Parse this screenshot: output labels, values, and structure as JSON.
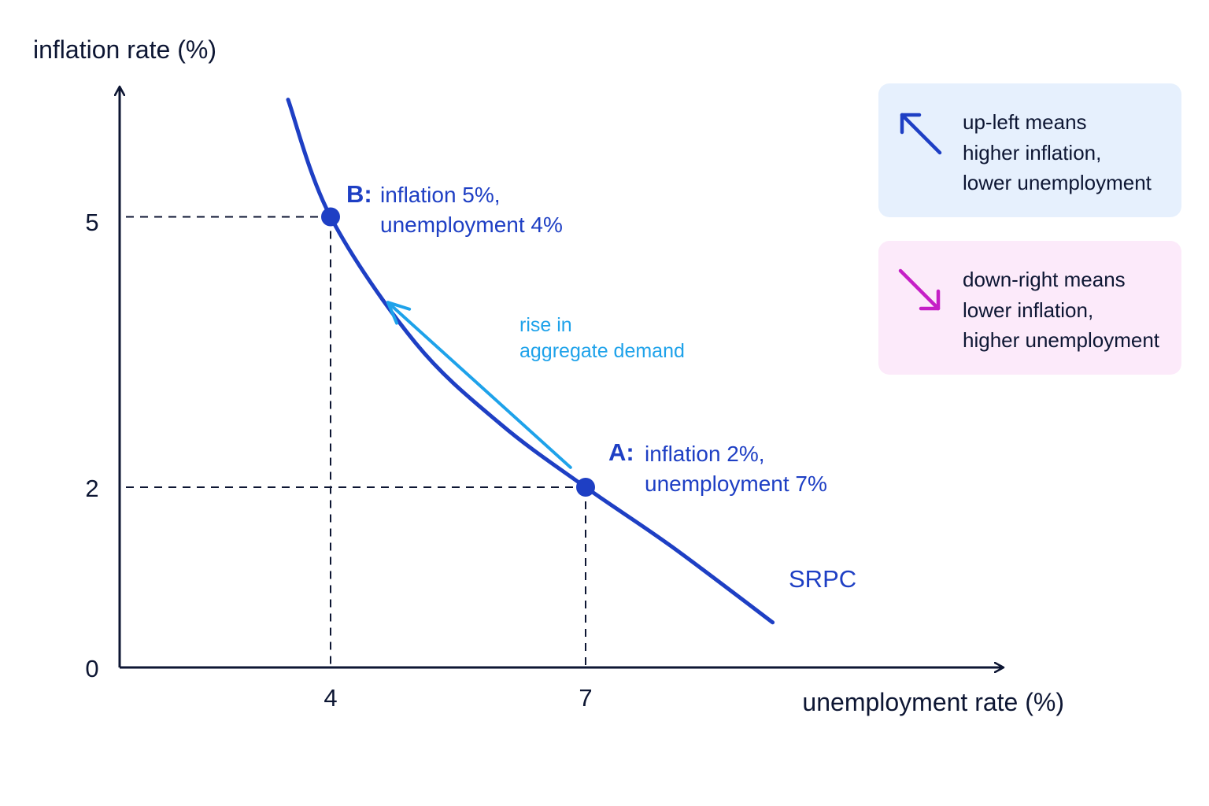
{
  "chart_data": {
    "type": "line",
    "title": "",
    "xlabel": "unemployment rate (%)",
    "ylabel": "inflation rate (%)",
    "x_ticks": [
      "4",
      "7"
    ],
    "y_ticks": [
      "0",
      "2",
      "5"
    ],
    "series": [
      {
        "name": "SRPC",
        "x": [
          3.5,
          4,
          5,
          6,
          7,
          8,
          9.2
        ],
        "y": [
          6.3,
          5,
          3.6,
          2.7,
          2,
          1.35,
          0.5
        ],
        "color": "#1e3fc4"
      }
    ],
    "points": [
      {
        "letter": "B:",
        "lines": [
          "inflation 5%,",
          "unemployment 4%"
        ],
        "x": 4,
        "y": 5
      },
      {
        "letter": "A:",
        "lines": [
          "inflation 2%,",
          "unemployment 7%"
        ],
        "x": 7,
        "y": 2
      }
    ],
    "movement": {
      "label_lines": [
        "rise in",
        "aggregate demand"
      ],
      "from": {
        "x": 7,
        "y": 2
      },
      "to": {
        "x": 4,
        "y": 5
      },
      "color": "#1ea2ea"
    },
    "grid": false,
    "legend": "none"
  },
  "key": {
    "up_left": {
      "lines": [
        "up-left means",
        "higher inflation,",
        "lower unemployment"
      ],
      "icon": "arrow-up-left-icon",
      "color": "#1e3fc4",
      "background": "#e6f0fd"
    },
    "down_right": {
      "lines": [
        "down-right means",
        "lower inflation,",
        "higher unemployment"
      ],
      "icon": "arrow-down-right-icon",
      "color": "#c51fc6",
      "background": "#fceafa"
    }
  }
}
